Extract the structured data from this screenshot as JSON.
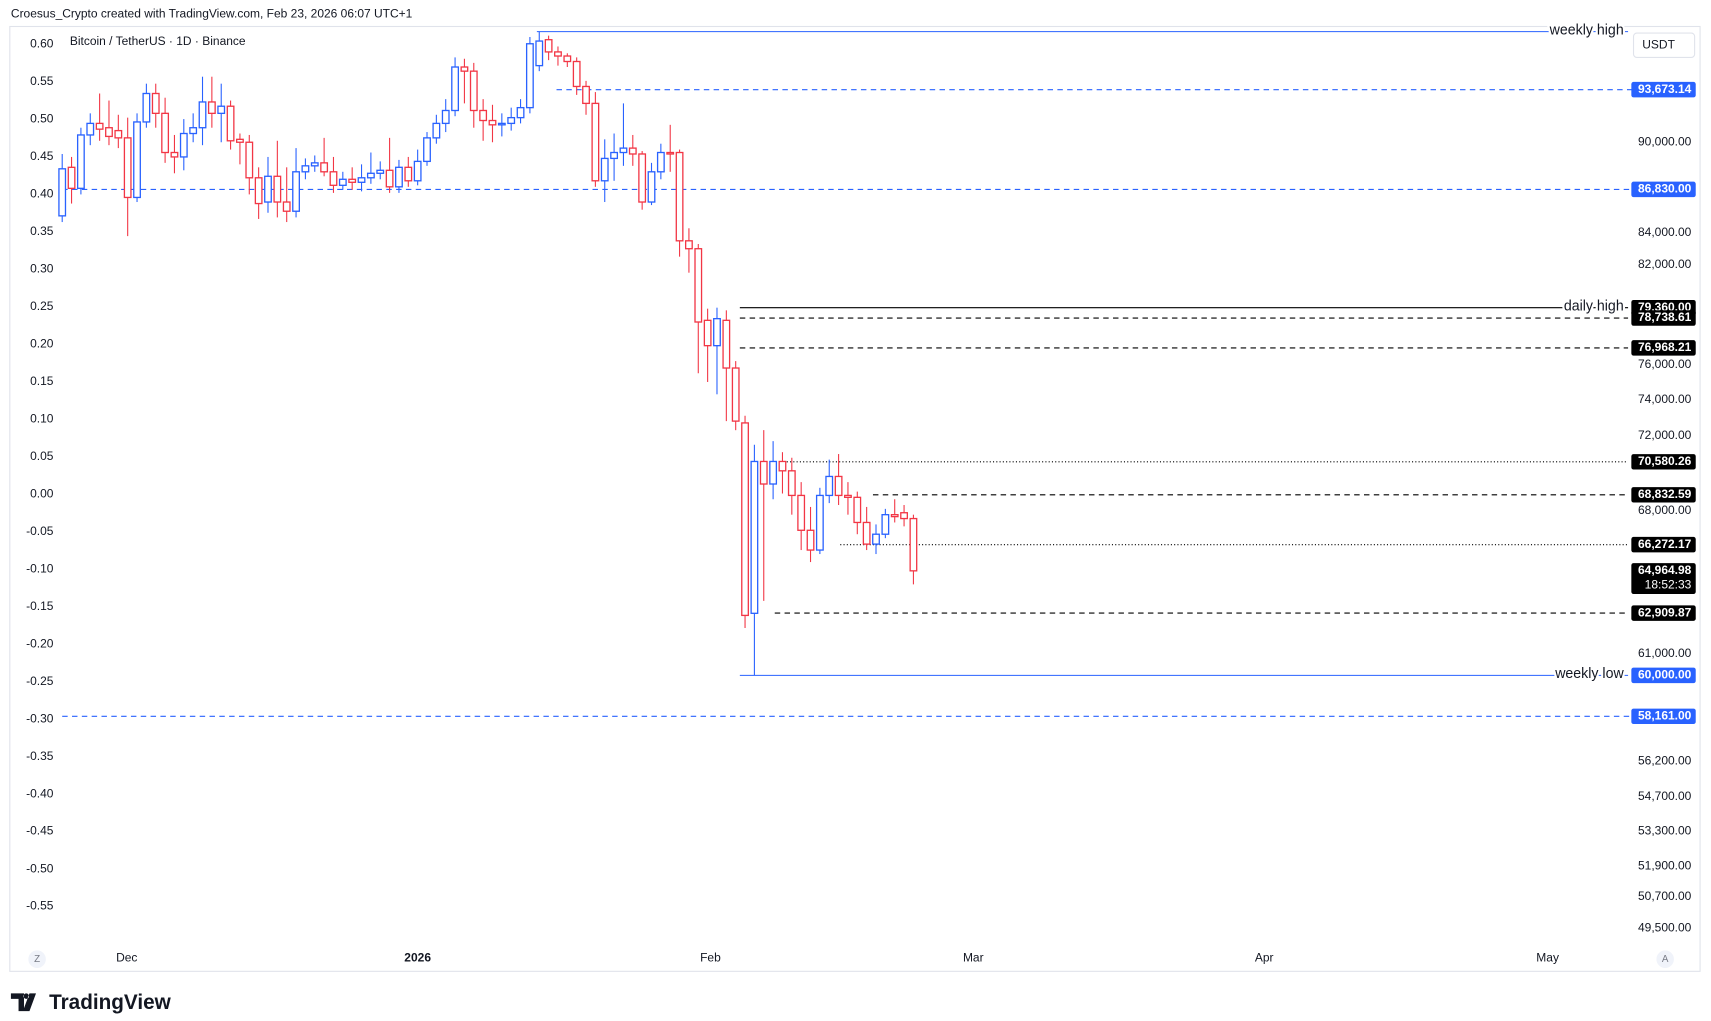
{
  "header": "Croesus_Crypto created with TradingView.com, Feb 23, 2026 06:07 UTC+1",
  "brand": "TradingView",
  "chart_data": {
    "type": "candlestick",
    "title": "Bitcoin / TetherUS · 1D · Binance",
    "currency": "USDT",
    "log_scale": true,
    "up_color": "#2962ff",
    "down_color": "#f23645",
    "candles": {
      "open": [
        85100,
        88300,
        86900,
        90500,
        91300,
        91000,
        90800,
        90300,
        86300,
        91400,
        93400,
        92000,
        89300,
        89000,
        90600,
        91000,
        92800,
        92000,
        92500,
        90200,
        90000,
        87600,
        86000,
        87700,
        86000,
        85400,
        88000,
        88400,
        88600,
        88000,
        87100,
        87500,
        87300,
        87600,
        87900,
        88100,
        87000,
        88300,
        87400,
        88700,
        90300,
        91300,
        92200,
        95300,
        95000,
        92200,
        91500,
        91200,
        91300,
        91700,
        92400,
        95400,
        97300,
        96400,
        96100,
        95700,
        93900,
        92700,
        87400,
        88900,
        89300,
        89600,
        89200,
        86000,
        88000,
        89300,
        89300,
        83500,
        83000,
        78600,
        77100,
        78600,
        75800,
        72700,
        62900,
        70600,
        69400,
        70600,
        70100,
        68800,
        67000,
        66000,
        68800,
        69800,
        68800,
        68700,
        67400,
        66300,
        66800,
        67800,
        67900,
        67600
      ],
      "high": [
        89200,
        89000,
        91000,
        92000,
        93400,
        92900,
        91900,
        91700,
        92000,
        94100,
        94100,
        93100,
        90500,
        91600,
        92000,
        94600,
        94600,
        94100,
        92900,
        90600,
        90500,
        88300,
        89000,
        90100,
        88300,
        89600,
        88900,
        89100,
        90300,
        89000,
        88000,
        88300,
        88500,
        89300,
        88700,
        90300,
        88800,
        89000,
        89500,
        90700,
        91900,
        93000,
        96000,
        95900,
        95600,
        93000,
        92600,
        92000,
        92400,
        93000,
        97500,
        97900,
        97600,
        96800,
        96300,
        96000,
        94300,
        93500,
        90200,
        90600,
        92700,
        90500,
        89400,
        88600,
        89900,
        91200,
        89500,
        84300,
        83300,
        79300,
        79360,
        79200,
        76200,
        73100,
        71500,
        72300,
        71700,
        71100,
        70800,
        69500,
        68200,
        69200,
        70700,
        71000,
        69500,
        69000,
        68200,
        67300,
        68100,
        68600,
        68300,
        67800
      ],
      "low": [
        84700,
        85900,
        86500,
        89800,
        90100,
        89800,
        89600,
        83800,
        86000,
        91000,
        91000,
        88600,
        87900,
        88100,
        90000,
        89800,
        91000,
        90000,
        89500,
        88500,
        86500,
        84900,
        85300,
        85000,
        84700,
        85000,
        87500,
        88000,
        87700,
        86600,
        86800,
        86800,
        86700,
        87200,
        87500,
        86600,
        86600,
        87000,
        87100,
        88400,
        89900,
        90700,
        91800,
        92700,
        91000,
        90100,
        90000,
        90400,
        90800,
        91300,
        92000,
        95000,
        95800,
        95400,
        95300,
        93300,
        91900,
        87000,
        86000,
        87400,
        88400,
        88400,
        85500,
        85800,
        87500,
        88000,
        82500,
        81500,
        75500,
        75000,
        74300,
        72800,
        72300,
        62200,
        60000,
        63500,
        68600,
        68900,
        67800,
        66000,
        65400,
        65800,
        68400,
        68300,
        67800,
        66800,
        66000,
        65800,
        66600,
        67400,
        67200,
        64300
      ],
      "close": [
        88200,
        86900,
        90500,
        91300,
        90900,
        90400,
        90300,
        86300,
        91400,
        93400,
        92000,
        89300,
        89000,
        90600,
        91000,
        92800,
        92000,
        92500,
        90100,
        90000,
        87600,
        85900,
        87700,
        86000,
        85400,
        88000,
        88400,
        88600,
        88000,
        87100,
        87500,
        87300,
        87600,
        87900,
        88100,
        87000,
        88300,
        87400,
        88700,
        90300,
        91300,
        92200,
        95300,
        95000,
        92200,
        91500,
        91200,
        91300,
        91700,
        92400,
        97000,
        97200,
        96400,
        96100,
        95700,
        93900,
        92700,
        87400,
        88900,
        89300,
        89600,
        89200,
        86000,
        88000,
        89300,
        89200,
        83500,
        83000,
        78500,
        77100,
        78700,
        75800,
        72800,
        62800,
        70600,
        69400,
        70600,
        70100,
        68800,
        67000,
        66000,
        68800,
        69800,
        68800,
        68700,
        67400,
        66300,
        66800,
        67800,
        67700,
        67600,
        64965
      ]
    },
    "xlim": [
      -5.6,
      167.4
    ],
    "xticks": [
      {
        "value": 6.9,
        "label": "Dec"
      },
      {
        "value": 38,
        "label": "2026"
      },
      {
        "value": 69.3,
        "label": "Feb"
      },
      {
        "value": 97.4,
        "label": "Mar"
      },
      {
        "value": 128.5,
        "label": "Apr"
      },
      {
        "value": 158.8,
        "label": "May"
      }
    ],
    "ylim": [
      48800,
      98200
    ],
    "yticks": [
      {
        "value": 90000,
        "label": "90,000.00"
      },
      {
        "value": 84000,
        "label": "84,000.00"
      },
      {
        "value": 82000,
        "label": "82,000.00"
      },
      {
        "value": 76000,
        "label": "76,000.00"
      },
      {
        "value": 74000,
        "label": "74,000.00"
      },
      {
        "value": 72000,
        "label": "72,000.00"
      },
      {
        "value": 68000,
        "label": "68,000.00"
      },
      {
        "value": 61000,
        "label": "61,000.00"
      },
      {
        "value": 56200,
        "label": "56,200.00"
      },
      {
        "value": 54700,
        "label": "54,700.00"
      },
      {
        "value": 53300,
        "label": "53,300.00"
      },
      {
        "value": 51900,
        "label": "51,900.00"
      },
      {
        "value": 50700,
        "label": "50,700.00"
      },
      {
        "value": 49500,
        "label": "49,500.00"
      }
    ],
    "y2lim": [
      -0.604,
      0.622
    ],
    "y2ticks": [
      {
        "value": 0.6,
        "label": "0.60"
      },
      {
        "value": 0.55,
        "label": "0.55"
      },
      {
        "value": 0.5,
        "label": "0.50"
      },
      {
        "value": 0.45,
        "label": "0.45"
      },
      {
        "value": 0.4,
        "label": "0.40"
      },
      {
        "value": 0.35,
        "label": "0.35"
      },
      {
        "value": 0.3,
        "label": "0.30"
      },
      {
        "value": 0.25,
        "label": "0.25"
      },
      {
        "value": 0.2,
        "label": "0.20"
      },
      {
        "value": 0.15,
        "label": "0.15"
      },
      {
        "value": 0.1,
        "label": "0.10"
      },
      {
        "value": 0.05,
        "label": "0.05"
      },
      {
        "value": 0,
        "label": "0.00"
      },
      {
        "value": -0.05,
        "label": "-0.05"
      },
      {
        "value": -0.1,
        "label": "-0.10"
      },
      {
        "value": -0.15,
        "label": "-0.15"
      },
      {
        "value": -0.2,
        "label": "-0.20"
      },
      {
        "value": -0.25,
        "label": "-0.25"
      },
      {
        "value": -0.3,
        "label": "-0.30"
      },
      {
        "value": -0.35,
        "label": "-0.35"
      },
      {
        "value": -0.4,
        "label": "-0.40"
      },
      {
        "value": -0.45,
        "label": "-0.45"
      },
      {
        "value": -0.5,
        "label": "-0.50"
      },
      {
        "value": -0.55,
        "label": "-0.55"
      }
    ],
    "levels": [
      {
        "value": 97900,
        "text": "weekly high",
        "color": "#2962ff",
        "style": "solid"
      },
      {
        "value": 93673.14,
        "label": "93,673.14",
        "color": "#2962ff",
        "style": "dashed"
      },
      {
        "value": 86830,
        "label": "86,830.00",
        "color": "#2962ff",
        "style": "dashed"
      },
      {
        "value": 79360,
        "label": "79,360.00",
        "text": "daily high",
        "color": "#000000",
        "style": "solid"
      },
      {
        "value": 78738.61,
        "label": "78,738.61",
        "color": "#000000",
        "style": "dashed"
      },
      {
        "value": 76968.21,
        "label": "76,968.21",
        "color": "#000000",
        "style": "dashed"
      },
      {
        "value": 70580.26,
        "label": "70,580.26",
        "color": "#000000",
        "style": "dotted"
      },
      {
        "value": 68832.59,
        "label": "68,832.59",
        "color": "#000000",
        "style": "dashed"
      },
      {
        "value": 66272.17,
        "label": "66,272.17",
        "color": "#000000",
        "style": "dotted"
      },
      {
        "value": 64964.98,
        "label": "64,964.98",
        "countdown": "18:52:33",
        "color": "#000000",
        "style": "none"
      },
      {
        "value": 62909.87,
        "label": "62,909.87",
        "color": "#000000",
        "style": "dashed"
      },
      {
        "value": 60000,
        "label": "60,000.00",
        "text": "weekly low",
        "color": "#2962ff",
        "style": "solid"
      },
      {
        "value": 58161,
        "label": "58,161.00",
        "color": "#2962ff",
        "style": "dashed"
      }
    ],
    "buttons": [
      "Z",
      "A"
    ]
  }
}
